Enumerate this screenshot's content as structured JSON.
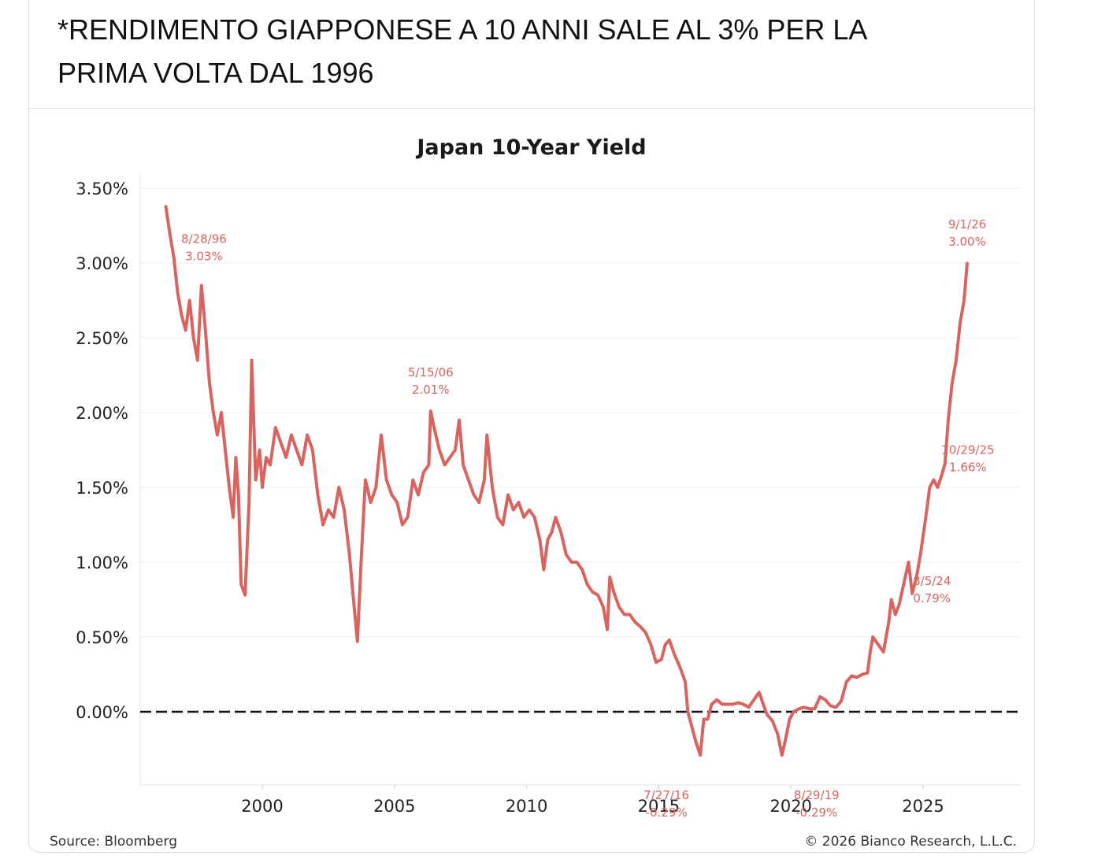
{
  "post": {
    "headline_line1": "*RENDIMENTO GIAPPONESE A 10 ANNI SALE AL 3% PER LA",
    "headline_line2": "PRIMA VOLTA DAL 1996"
  },
  "colors": {
    "series": "#d9645f",
    "grid": "#ececec",
    "zero_line": "#111111"
  },
  "chart_data": {
    "type": "line",
    "title": "Japan 10-Year Yield",
    "xlabel": "",
    "ylabel": "",
    "xlim": [
      1996.0,
      2028.0
    ],
    "ylim": [
      -0.5,
      3.6
    ],
    "x_ticks": [
      2000,
      2005,
      2010,
      2015,
      2020,
      2025
    ],
    "x_tick_labels": [
      "2000",
      "2005",
      "2010",
      "2015",
      "2020",
      "2025"
    ],
    "y_ticks": [
      0.0,
      0.5,
      1.0,
      1.5,
      2.0,
      2.5,
      3.0,
      3.5
    ],
    "y_tick_labels": [
      "0.00%",
      "0.50%",
      "1.00%",
      "1.50%",
      "2.00%",
      "2.50%",
      "3.00%",
      "3.50%"
    ],
    "grid": true,
    "legend": "none",
    "reference_line": {
      "y": 0.0,
      "style": "dashed"
    },
    "series": [
      {
        "points": [
          [
            1996.35,
            3.38
          ],
          [
            1996.5,
            3.2
          ],
          [
            1996.66,
            3.03
          ],
          [
            1996.8,
            2.8
          ],
          [
            1996.95,
            2.65
          ],
          [
            1997.1,
            2.55
          ],
          [
            1997.25,
            2.75
          ],
          [
            1997.4,
            2.5
          ],
          [
            1997.55,
            2.35
          ],
          [
            1997.7,
            2.85
          ],
          [
            1997.85,
            2.55
          ],
          [
            1998.0,
            2.2
          ],
          [
            1998.15,
            2.0
          ],
          [
            1998.3,
            1.85
          ],
          [
            1998.45,
            2.0
          ],
          [
            1998.6,
            1.75
          ],
          [
            1998.75,
            1.5
          ],
          [
            1998.9,
            1.3
          ],
          [
            1999.0,
            1.7
          ],
          [
            1999.1,
            1.45
          ],
          [
            1999.2,
            0.85
          ],
          [
            1999.35,
            0.78
          ],
          [
            1999.5,
            1.4
          ],
          [
            1999.6,
            2.35
          ],
          [
            1999.75,
            1.55
          ],
          [
            1999.9,
            1.75
          ],
          [
            2000.0,
            1.5
          ],
          [
            2000.15,
            1.7
          ],
          [
            2000.3,
            1.65
          ],
          [
            2000.5,
            1.9
          ],
          [
            2000.7,
            1.8
          ],
          [
            2000.9,
            1.7
          ],
          [
            2001.1,
            1.85
          ],
          [
            2001.3,
            1.75
          ],
          [
            2001.5,
            1.65
          ],
          [
            2001.7,
            1.85
          ],
          [
            2001.9,
            1.75
          ],
          [
            2002.1,
            1.45
          ],
          [
            2002.3,
            1.25
          ],
          [
            2002.5,
            1.35
          ],
          [
            2002.7,
            1.3
          ],
          [
            2002.9,
            1.5
          ],
          [
            2003.1,
            1.35
          ],
          [
            2003.3,
            1.05
          ],
          [
            2003.45,
            0.75
          ],
          [
            2003.6,
            0.47
          ],
          [
            2003.75,
            1.05
          ],
          [
            2003.9,
            1.55
          ],
          [
            2004.1,
            1.4
          ],
          [
            2004.3,
            1.5
          ],
          [
            2004.5,
            1.85
          ],
          [
            2004.7,
            1.55
          ],
          [
            2004.9,
            1.45
          ],
          [
            2005.1,
            1.4
          ],
          [
            2005.3,
            1.25
          ],
          [
            2005.5,
            1.3
          ],
          [
            2005.7,
            1.55
          ],
          [
            2005.9,
            1.45
          ],
          [
            2006.1,
            1.6
          ],
          [
            2006.3,
            1.65
          ],
          [
            2006.37,
            2.01
          ],
          [
            2006.5,
            1.9
          ],
          [
            2006.7,
            1.75
          ],
          [
            2006.9,
            1.65
          ],
          [
            2007.1,
            1.7
          ],
          [
            2007.3,
            1.75
          ],
          [
            2007.45,
            1.95
          ],
          [
            2007.6,
            1.65
          ],
          [
            2007.8,
            1.55
          ],
          [
            2008.0,
            1.45
          ],
          [
            2008.2,
            1.4
          ],
          [
            2008.4,
            1.55
          ],
          [
            2008.5,
            1.85
          ],
          [
            2008.7,
            1.5
          ],
          [
            2008.9,
            1.3
          ],
          [
            2009.1,
            1.25
          ],
          [
            2009.3,
            1.45
          ],
          [
            2009.5,
            1.35
          ],
          [
            2009.7,
            1.4
          ],
          [
            2009.9,
            1.3
          ],
          [
            2010.1,
            1.35
          ],
          [
            2010.3,
            1.3
          ],
          [
            2010.5,
            1.15
          ],
          [
            2010.65,
            0.95
          ],
          [
            2010.8,
            1.15
          ],
          [
            2010.95,
            1.2
          ],
          [
            2011.1,
            1.3
          ],
          [
            2011.3,
            1.2
          ],
          [
            2011.5,
            1.05
          ],
          [
            2011.7,
            1.0
          ],
          [
            2011.9,
            1.0
          ],
          [
            2012.1,
            0.95
          ],
          [
            2012.3,
            0.85
          ],
          [
            2012.5,
            0.8
          ],
          [
            2012.7,
            0.78
          ],
          [
            2012.9,
            0.7
          ],
          [
            2013.05,
            0.55
          ],
          [
            2013.15,
            0.9
          ],
          [
            2013.3,
            0.8
          ],
          [
            2013.5,
            0.7
          ],
          [
            2013.7,
            0.65
          ],
          [
            2013.9,
            0.65
          ],
          [
            2014.1,
            0.6
          ],
          [
            2014.3,
            0.57
          ],
          [
            2014.5,
            0.53
          ],
          [
            2014.7,
            0.45
          ],
          [
            2014.9,
            0.33
          ],
          [
            2015.1,
            0.35
          ],
          [
            2015.25,
            0.45
          ],
          [
            2015.4,
            0.48
          ],
          [
            2015.6,
            0.38
          ],
          [
            2015.8,
            0.3
          ],
          [
            2016.0,
            0.2
          ],
          [
            2016.1,
            0.0
          ],
          [
            2016.25,
            -0.1
          ],
          [
            2016.4,
            -0.2
          ],
          [
            2016.57,
            -0.29
          ],
          [
            2016.7,
            -0.05
          ],
          [
            2016.85,
            -0.05
          ],
          [
            2017.0,
            0.05
          ],
          [
            2017.2,
            0.08
          ],
          [
            2017.4,
            0.05
          ],
          [
            2017.6,
            0.05
          ],
          [
            2017.8,
            0.05
          ],
          [
            2018.0,
            0.06
          ],
          [
            2018.2,
            0.05
          ],
          [
            2018.4,
            0.03
          ],
          [
            2018.6,
            0.08
          ],
          [
            2018.8,
            0.13
          ],
          [
            2018.95,
            0.05
          ],
          [
            2019.1,
            -0.02
          ],
          [
            2019.3,
            -0.06
          ],
          [
            2019.5,
            -0.15
          ],
          [
            2019.66,
            -0.29
          ],
          [
            2019.8,
            -0.18
          ],
          [
            2019.95,
            -0.05
          ],
          [
            2020.1,
            0.0
          ],
          [
            2020.3,
            0.02
          ],
          [
            2020.5,
            0.03
          ],
          [
            2020.7,
            0.02
          ],
          [
            2020.9,
            0.02
          ],
          [
            2021.1,
            0.1
          ],
          [
            2021.3,
            0.08
          ],
          [
            2021.5,
            0.04
          ],
          [
            2021.7,
            0.03
          ],
          [
            2021.9,
            0.07
          ],
          [
            2022.1,
            0.2
          ],
          [
            2022.3,
            0.24
          ],
          [
            2022.5,
            0.23
          ],
          [
            2022.7,
            0.25
          ],
          [
            2022.9,
            0.26
          ],
          [
            2023.0,
            0.4
          ],
          [
            2023.1,
            0.5
          ],
          [
            2023.3,
            0.45
          ],
          [
            2023.5,
            0.4
          ],
          [
            2023.7,
            0.6
          ],
          [
            2023.8,
            0.75
          ],
          [
            2023.95,
            0.65
          ],
          [
            2024.1,
            0.72
          ],
          [
            2024.3,
            0.88
          ],
          [
            2024.45,
            1.0
          ],
          [
            2024.59,
            0.79
          ],
          [
            2024.75,
            0.9
          ],
          [
            2024.9,
            1.05
          ],
          [
            2025.1,
            1.3
          ],
          [
            2025.25,
            1.5
          ],
          [
            2025.4,
            1.55
          ],
          [
            2025.55,
            1.5
          ],
          [
            2025.7,
            1.58
          ],
          [
            2025.83,
            1.66
          ],
          [
            2025.95,
            1.95
          ],
          [
            2026.1,
            2.2
          ],
          [
            2026.25,
            2.35
          ],
          [
            2026.4,
            2.6
          ],
          [
            2026.55,
            2.75
          ],
          [
            2026.67,
            3.0
          ]
        ]
      }
    ],
    "annotations": [
      {
        "date": "8/28/96",
        "value": "3.03%",
        "x": 1996.66,
        "y": 3.03,
        "position": "below-right"
      },
      {
        "date": "5/15/06",
        "value": "2.01%",
        "x": 2006.37,
        "y": 2.01,
        "position": "above"
      },
      {
        "date": "7/27/16",
        "value": "-0.29%",
        "x": 2016.57,
        "y": -0.29,
        "position": "below-left"
      },
      {
        "date": "8/29/19",
        "value": "-0.29%",
        "x": 2019.66,
        "y": -0.29,
        "position": "below-right"
      },
      {
        "date": "8/5/24",
        "value": "0.79%",
        "x": 2024.59,
        "y": 0.79,
        "position": "right"
      },
      {
        "date": "10/29/25",
        "value": "1.66%",
        "x": 2025.83,
        "y": 1.66,
        "position": "right"
      },
      {
        "date": "9/1/26",
        "value": "3.00%",
        "x": 2026.67,
        "y": 3.0,
        "position": "above"
      }
    ],
    "source": "Source: Bloomberg",
    "copyright": "© 2026 Bianco Research, L.L.C."
  }
}
